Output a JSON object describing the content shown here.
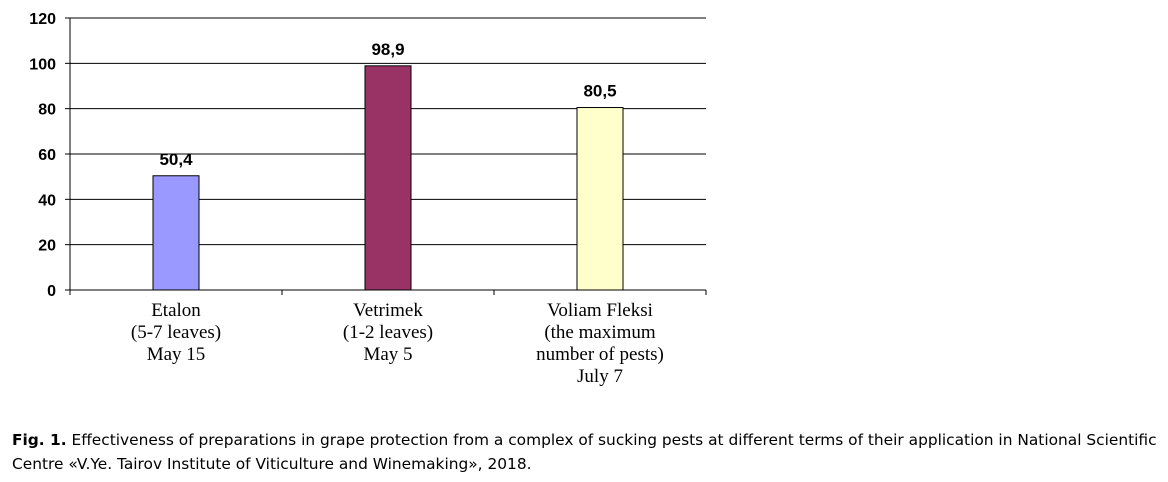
{
  "chart_data": {
    "type": "bar",
    "categories": [
      [
        "Etalon",
        "(5-7 leaves)",
        "May 15"
      ],
      [
        "Vetrimek",
        "(1-2 leaves)",
        "May 5"
      ],
      [
        "Voliam Fleksi",
        "(the maximum",
        "number of pests)",
        "July 7"
      ]
    ],
    "values": [
      50.4,
      98.9,
      80.5
    ],
    "value_labels": [
      "50,4",
      "98,9",
      "80,5"
    ],
    "colors": [
      "#9999ff",
      "#993366",
      "#ffffcc"
    ],
    "ylim": [
      0,
      120
    ],
    "yticks": [
      0,
      20,
      40,
      60,
      80,
      100,
      120
    ],
    "grid": true,
    "legend": "none"
  },
  "caption": {
    "prefix": "Fig. 1.",
    "text": " Effectiveness of preparations in grape protection from a complex of sucking pests at different terms of their application in National Scientific Centre «V.Ye. Tairov Institute of Viticulture and Winemaking», 2018."
  }
}
